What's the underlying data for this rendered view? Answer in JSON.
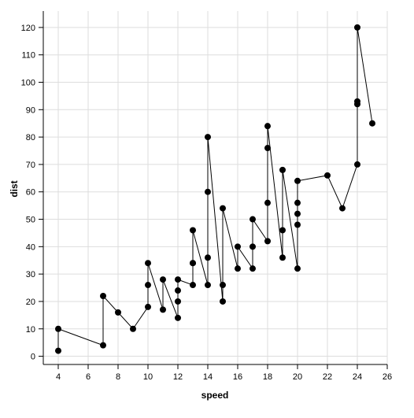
{
  "chart_data": {
    "type": "line",
    "title": "",
    "xlabel": "speed",
    "ylabel": "dist",
    "xlim": [
      3,
      26
    ],
    "ylim": [
      -3,
      126
    ],
    "xticks": [
      4,
      6,
      8,
      10,
      12,
      14,
      16,
      18,
      20,
      22,
      24,
      26
    ],
    "yticks": [
      0,
      10,
      20,
      30,
      40,
      50,
      60,
      70,
      80,
      90,
      100,
      110,
      120
    ],
    "grid": true,
    "markers": true,
    "line_color": "#000000",
    "grid_color": "#dddddd",
    "series": [
      {
        "x": [
          4,
          4,
          7,
          7,
          8,
          9,
          10,
          10,
          10,
          11,
          11,
          12,
          12,
          12,
          12,
          13,
          13,
          13,
          13,
          14,
          14,
          14,
          14,
          15,
          15,
          15,
          16,
          16,
          17,
          17,
          17,
          18,
          18,
          18,
          18,
          19,
          19,
          19,
          20,
          20,
          20,
          20,
          20,
          22,
          23,
          24,
          24,
          24,
          24,
          25
        ],
        "y": [
          2,
          10,
          4,
          22,
          16,
          10,
          18,
          26,
          34,
          17,
          28,
          14,
          20,
          24,
          28,
          26,
          34,
          34,
          46,
          26,
          36,
          60,
          80,
          20,
          26,
          54,
          32,
          40,
          32,
          40,
          50,
          42,
          56,
          76,
          84,
          36,
          46,
          68,
          32,
          48,
          52,
          56,
          64,
          66,
          54,
          70,
          92,
          93,
          120,
          85
        ]
      }
    ]
  }
}
